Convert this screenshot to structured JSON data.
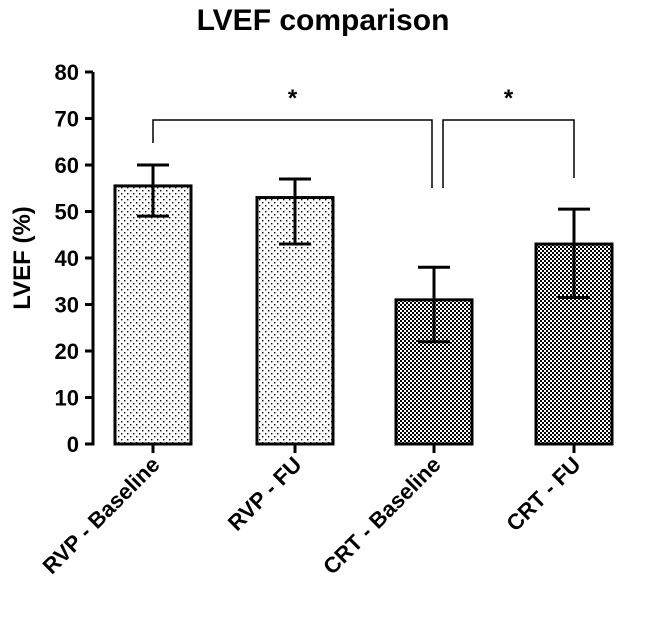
{
  "chart_data": {
    "type": "bar",
    "title": "LVEF comparison",
    "xlabel": "",
    "ylabel": "LVEF (%)",
    "ylim": [
      0,
      80
    ],
    "yticks": [
      "0",
      "10",
      "20",
      "30",
      "40",
      "50",
      "60",
      "70",
      "80"
    ],
    "categories": [
      "RVP - Baseline",
      "RVP - FU",
      "CRT - Baseline",
      "CRT - FU"
    ],
    "values": [
      55.5,
      53,
      31,
      43
    ],
    "error_low": [
      49,
      43,
      22,
      31.5
    ],
    "error_high": [
      60,
      57,
      38,
      50.5
    ],
    "patterns": [
      "sparse-dots",
      "sparse-dots",
      "checker",
      "checker"
    ],
    "significance": [
      {
        "from": 0,
        "to": 2,
        "label": "*"
      },
      {
        "from": 2,
        "to": 3,
        "label": "*"
      }
    ],
    "grid": false,
    "legend": "none"
  }
}
